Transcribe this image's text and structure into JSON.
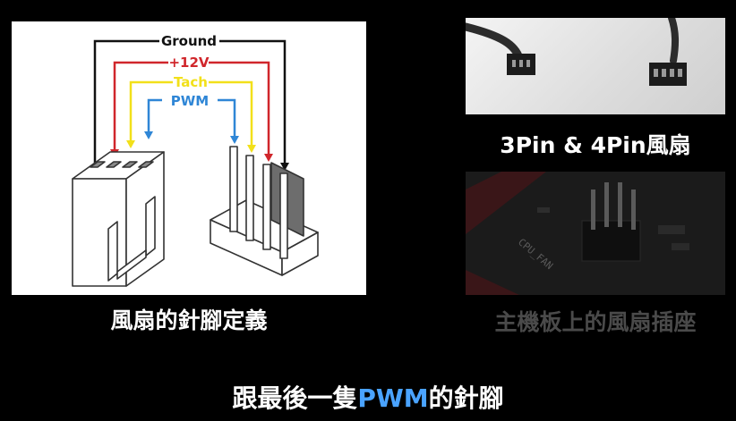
{
  "diagram": {
    "labels": {
      "ground": "Ground",
      "v12": "+12V",
      "tach": "Tach",
      "pwm": "PWM"
    },
    "colors": {
      "ground": "#111111",
      "v12": "#d0262b",
      "tach": "#f2e01a",
      "pwm": "#2f86d6"
    },
    "caption": "風扇的針腳定義"
  },
  "photo_top": {
    "caption": "3Pin & 4Pin風扇"
  },
  "photo_bottom": {
    "board_text": "CPU_FAN",
    "caption": "主機板上的風扇插座"
  },
  "subtitle": {
    "before": "跟最後一隻",
    "highlight": "PWM",
    "after": "的針腳"
  }
}
